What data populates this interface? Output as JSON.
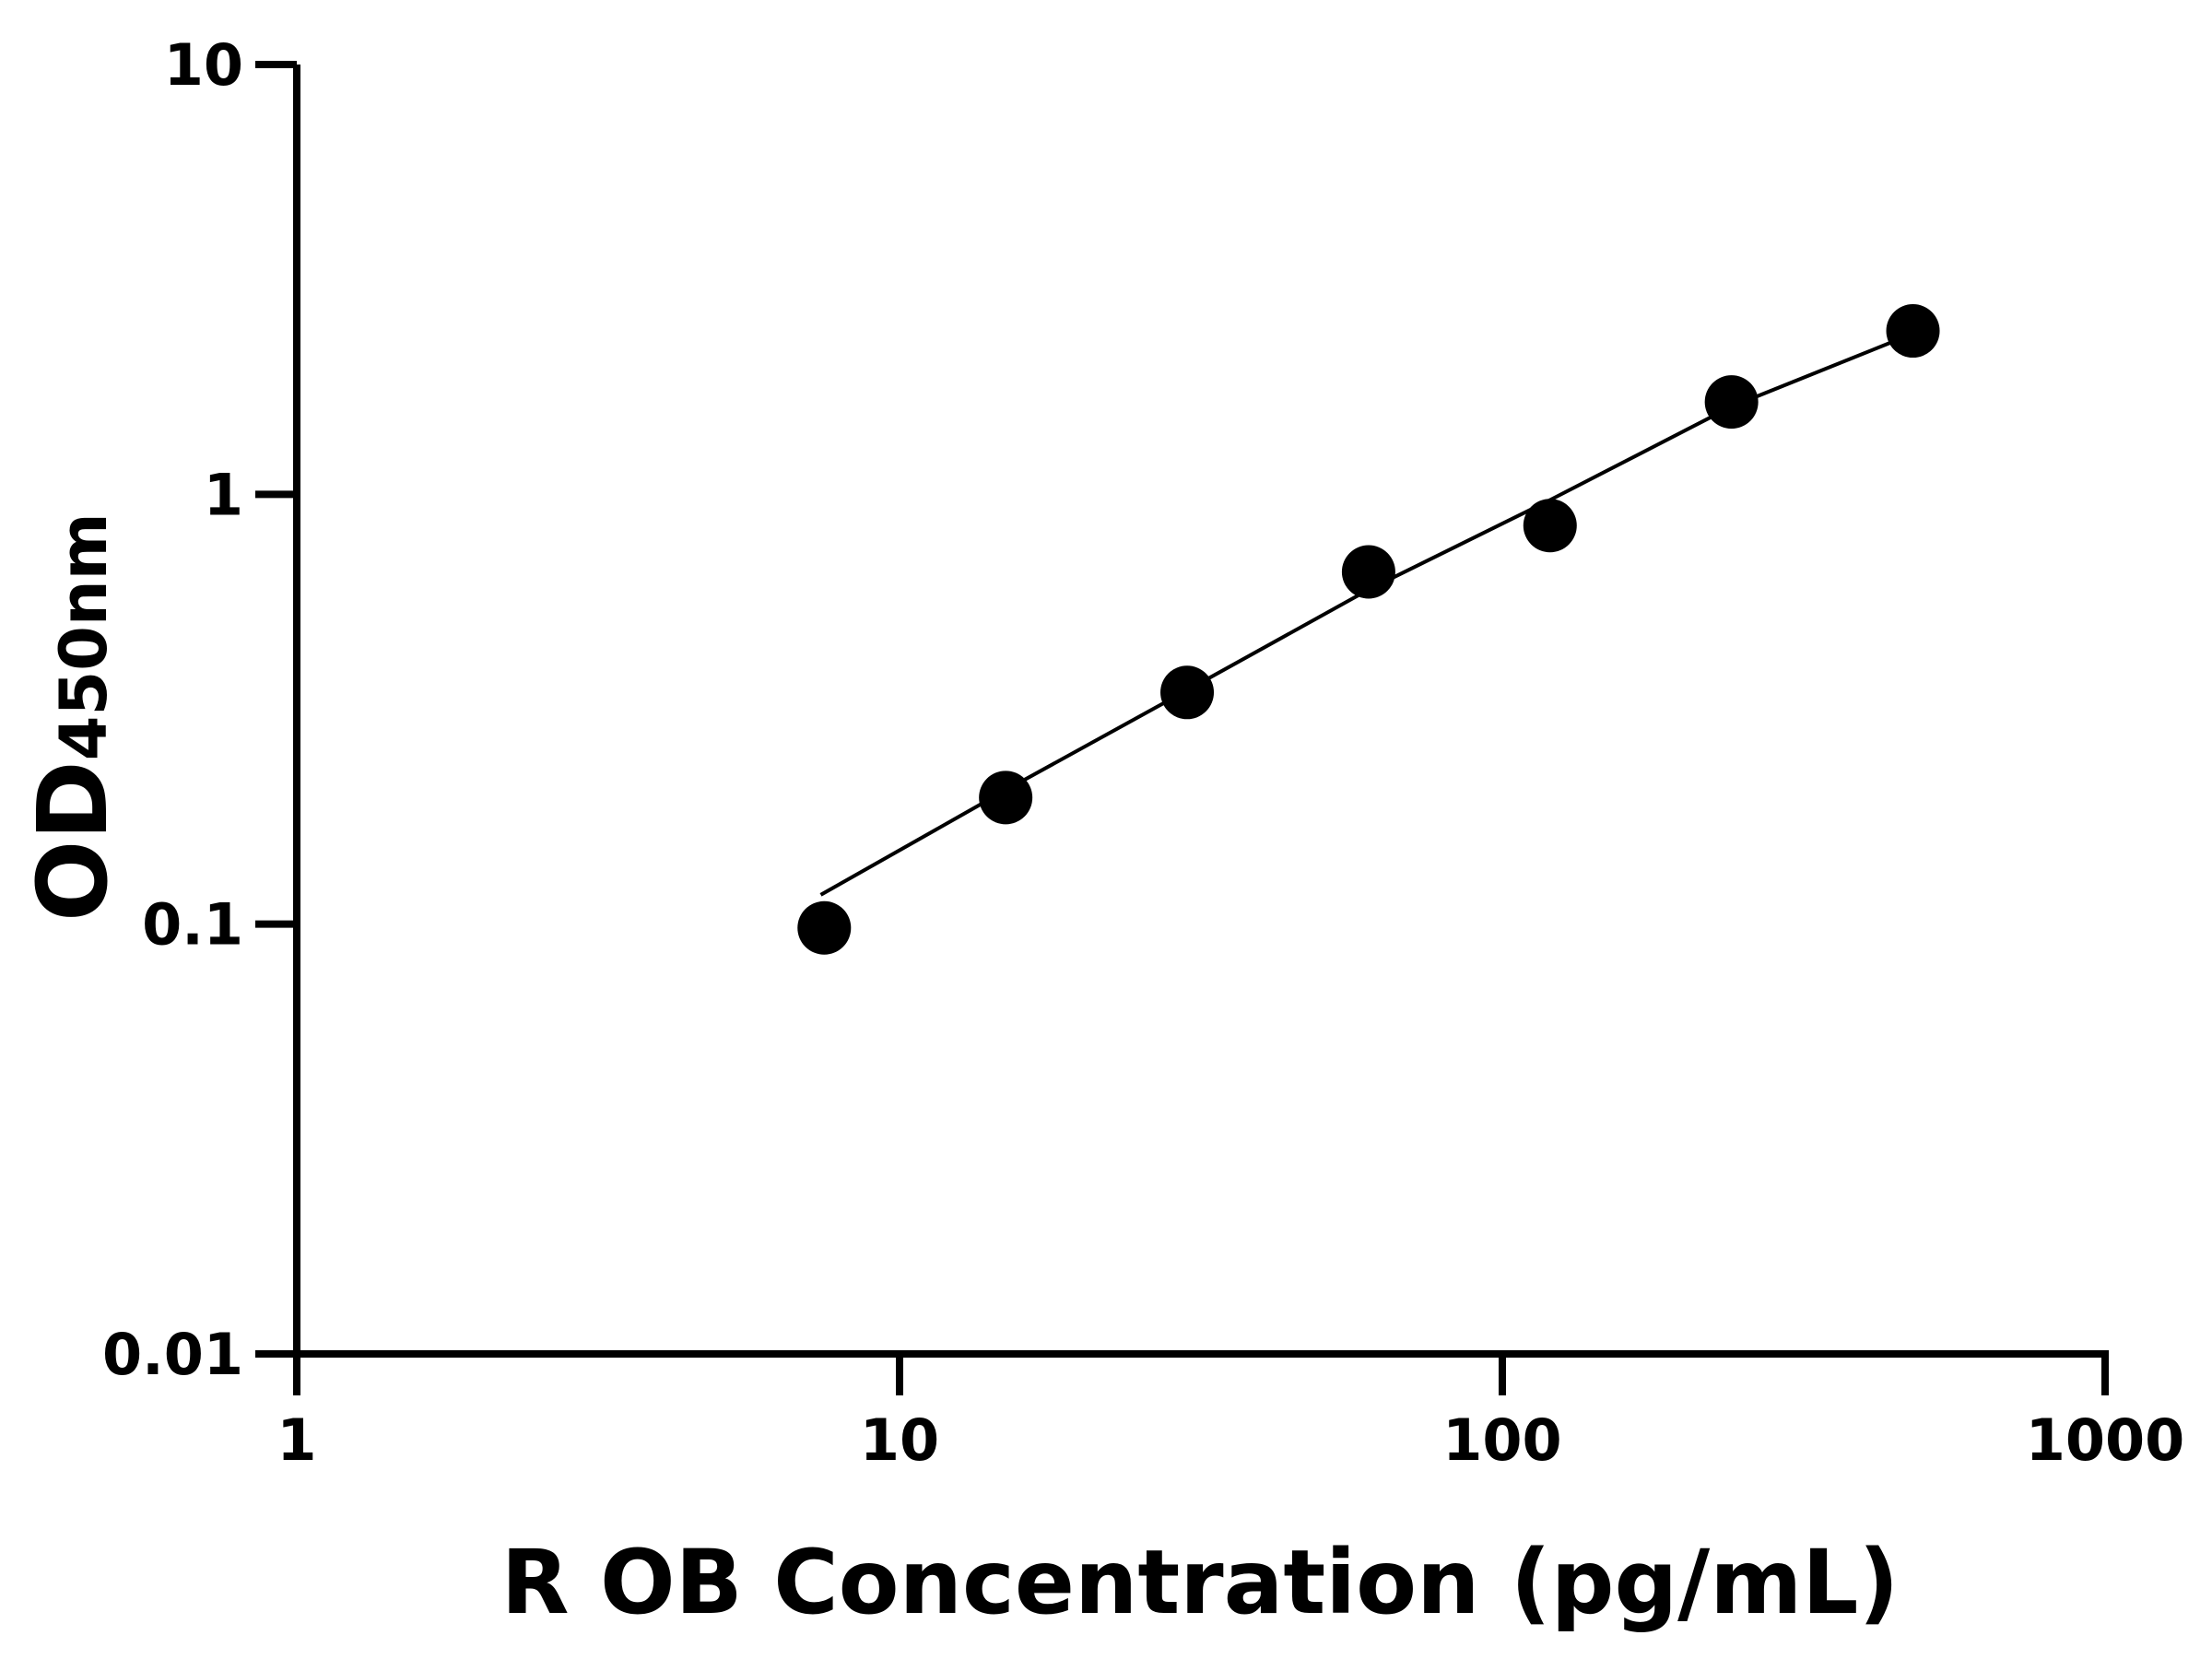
{
  "chart_data": {
    "type": "scatter",
    "title": "",
    "xlabel": "R OB Concentration (pg/mL)",
    "ylabel_main": "OD",
    "ylabel_sub": "450nm",
    "x_scale": "log",
    "y_scale": "log",
    "xlim": [
      1,
      1000
    ],
    "ylim": [
      0.01,
      10
    ],
    "x_ticks": [
      1,
      10,
      100,
      1000
    ],
    "x_tick_labels": [
      "1",
      "10",
      "100",
      "1000"
    ],
    "y_ticks": [
      0.01,
      0.1,
      1,
      10
    ],
    "y_tick_labels": [
      "0.01",
      "0.1",
      "1",
      "10"
    ],
    "grid": false,
    "series": [
      {
        "points": [
          {
            "x": 7.5,
            "y": 0.098
          },
          {
            "x": 15,
            "y": 0.197
          },
          {
            "x": 30,
            "y": 0.346
          },
          {
            "x": 60,
            "y": 0.66
          },
          {
            "x": 120,
            "y": 0.846
          },
          {
            "x": 240,
            "y": 1.64
          },
          {
            "x": 480,
            "y": 2.4
          }
        ],
        "marker_color": "#000000"
      }
    ],
    "fit_curve": [
      {
        "x": 7.4,
        "y": 0.117
      },
      {
        "x": 15,
        "y": 0.205
      },
      {
        "x": 30,
        "y": 0.35
      },
      {
        "x": 60,
        "y": 0.6
      },
      {
        "x": 120,
        "y": 0.97
      },
      {
        "x": 240,
        "y": 1.6
      },
      {
        "x": 450,
        "y": 2.28
      }
    ],
    "line_color": "#000000"
  }
}
